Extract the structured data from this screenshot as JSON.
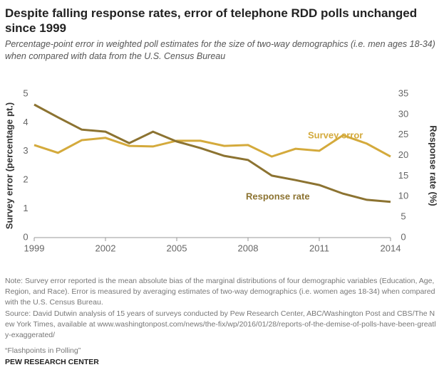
{
  "chart_data": {
    "type": "line",
    "title": "Despite falling response rates, error of telephone RDD polls unchanged since 1999",
    "subtitle": "Percentage-point error in weighted poll estimates for the size of two-way demographics (i.e. men ages 18-34) when compared with data from the U.S. Census Bureau",
    "ylabel": "Survey error (percentage pt.)",
    "y2label": "Response rate (%)",
    "x": [
      1999,
      2000,
      2001,
      2002,
      2003,
      2004,
      2005,
      2006,
      2007,
      2008,
      2009,
      2010,
      2011,
      2012,
      2013,
      2014
    ],
    "series": [
      {
        "name": "Survey error",
        "color": "#d4aa3c",
        "values": [
          3.22,
          2.95,
          3.39,
          3.47,
          3.19,
          3.17,
          3.37,
          3.37,
          3.19,
          3.22,
          2.82,
          3.09,
          3.02,
          3.56,
          3.27,
          2.82
        ]
      },
      {
        "name": "Response rate",
        "color": "#8c7331",
        "axis": "y2",
        "values": [
          32.4,
          29.3,
          26.3,
          25.8,
          23.0,
          25.8,
          23.4,
          21.8,
          19.9,
          18.9,
          15.1,
          14.0,
          12.8,
          10.7,
          9.2,
          8.7
        ]
      }
    ],
    "xlim": [
      1999,
      2014
    ],
    "xticks": [
      1999,
      2002,
      2005,
      2008,
      2011,
      2014
    ],
    "ylim": [
      0,
      5
    ],
    "yticks": [
      0,
      1,
      2,
      3,
      4,
      5
    ],
    "y2lim": [
      0,
      35
    ],
    "y2ticks": [
      0,
      5,
      10,
      15,
      20,
      25,
      30,
      35
    ],
    "grid": false,
    "note": "Note: Survey error reported is the mean absolute bias of the marginal distributions of four demographic variables (Education, Age, Region, and Race). Error is measured by averaging estimates of two-way demographics (i.e. women ages 18-34) when compared with the U.S. Census Bureau.",
    "source": "Source: David Dutwin analysis of 15 years of surveys conducted by Pew Research Center, ABC/Washington Post and CBS/The New York Times, available at www.washingtonpost.com/news/the-fix/wp/2016/01/28/reports-of-the-demise-of-polls-have-been-greatly-exaggerated/",
    "report": "“Flashpoints in Polling”",
    "credit": "PEW RESEARCH CENTER"
  }
}
